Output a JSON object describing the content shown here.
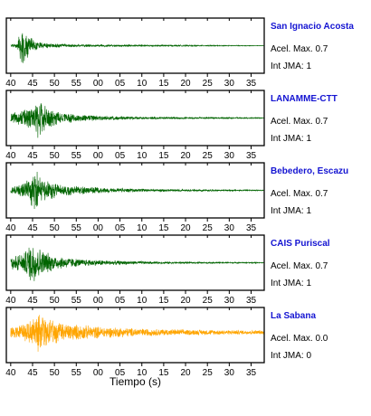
{
  "chart_data": {
    "type": "line",
    "xlabel": "Tiempo (s)",
    "x_ticks": [
      "40",
      "45",
      "50",
      "55",
      "00",
      "05",
      "10",
      "15",
      "20",
      "25",
      "30",
      "35"
    ],
    "acel_label": "Acel. Max.",
    "int_label": "Int JMA:",
    "panels": [
      {
        "station": "San Ignacio Acosta",
        "acel_max": "0.7",
        "int_jma": "1",
        "color": "#006400",
        "envelope": [
          [
            40,
            0.05
          ],
          [
            41.5,
            0.12
          ],
          [
            42.5,
            0.85
          ],
          [
            43.5,
            0.55
          ],
          [
            45,
            0.25
          ],
          [
            48,
            0.1
          ],
          [
            55,
            0.05
          ],
          [
            98,
            0.01
          ]
        ]
      },
      {
        "station": "LANAMME-CTT",
        "acel_max": "0.7",
        "int_jma": "1",
        "color": "#006400",
        "envelope": [
          [
            40,
            0.2
          ],
          [
            43,
            0.35
          ],
          [
            45.5,
            0.55
          ],
          [
            46.5,
            0.95
          ],
          [
            48,
            0.5
          ],
          [
            52,
            0.22
          ],
          [
            60,
            0.1
          ],
          [
            70,
            0.05
          ],
          [
            98,
            0.02
          ]
        ]
      },
      {
        "station": "Bebedero, Escazu",
        "acel_max": "0.7",
        "int_jma": "1",
        "color": "#006400",
        "envelope": [
          [
            40,
            0.12
          ],
          [
            43,
            0.3
          ],
          [
            44.5,
            0.6
          ],
          [
            45.5,
            0.95
          ],
          [
            47,
            0.5
          ],
          [
            52,
            0.25
          ],
          [
            60,
            0.12
          ],
          [
            70,
            0.06
          ],
          [
            98,
            0.02
          ]
        ]
      },
      {
        "station": "CAIS Puriscal",
        "acel_max": "0.7",
        "int_jma": "1",
        "color": "#006400",
        "envelope": [
          [
            40,
            0.28
          ],
          [
            43,
            0.4
          ],
          [
            45,
            0.95
          ],
          [
            47,
            0.55
          ],
          [
            50,
            0.3
          ],
          [
            56,
            0.15
          ],
          [
            65,
            0.08
          ],
          [
            75,
            0.04
          ],
          [
            98,
            0.02
          ]
        ]
      },
      {
        "station": "La Sabana",
        "acel_max": "0.0",
        "int_jma": "0",
        "color": "#ffa500",
        "envelope": [
          [
            40,
            0.22
          ],
          [
            43,
            0.35
          ],
          [
            45.5,
            0.6
          ],
          [
            46.5,
            0.95
          ],
          [
            48,
            0.6
          ],
          [
            52,
            0.38
          ],
          [
            60,
            0.25
          ],
          [
            70,
            0.16
          ],
          [
            80,
            0.12
          ],
          [
            88,
            0.1
          ],
          [
            98,
            0.08
          ]
        ]
      }
    ]
  }
}
